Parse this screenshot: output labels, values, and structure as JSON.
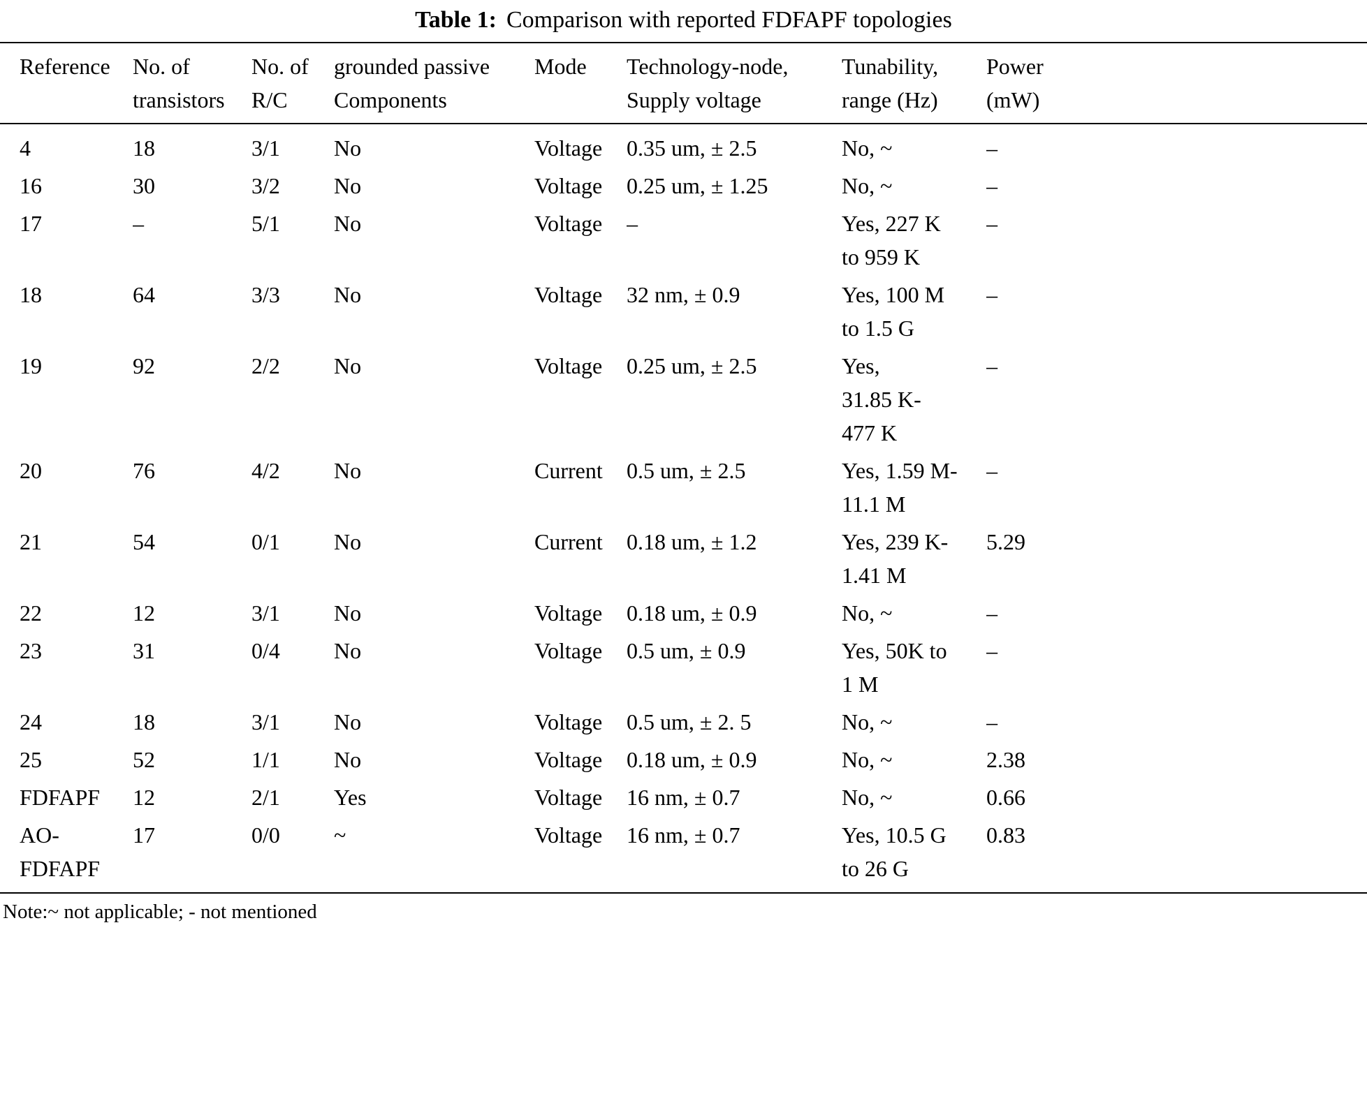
{
  "title": {
    "label": "Table 1:",
    "text": "Comparison with reported FDFAPF topologies"
  },
  "table": {
    "columns": [
      "Reference",
      "No. of\ntransistors",
      "No. of\nR/C",
      "grounded passive\nComponents",
      "Mode",
      "Technology-node,\nSupply voltage",
      "Tunability,\nrange (Hz)",
      "Power\n(mW)"
    ],
    "rows": [
      [
        "4",
        "18",
        "3/1",
        "No",
        "Voltage",
        "0.35 um, ± 2.5",
        "No, ~",
        "–"
      ],
      [
        "16",
        "30",
        "3/2",
        "No",
        "Voltage",
        "0.25 um, ± 1.25",
        "No, ~",
        "–"
      ],
      [
        "17",
        "–",
        "5/1",
        "No",
        "Voltage",
        "–",
        "Yes, 227 K\nto 959 K",
        "–"
      ],
      [
        "18",
        "64",
        "3/3",
        "No",
        "Voltage",
        "32 nm, ± 0.9",
        "Yes, 100 M\nto 1.5 G",
        "–"
      ],
      [
        "19",
        "92",
        "2/2",
        "No",
        "Voltage",
        "0.25 um, ± 2.5",
        "Yes,\n31.85 K-\n477 K",
        "–"
      ],
      [
        "20",
        "76",
        "4/2",
        "No",
        "Current",
        "0.5 um, ± 2.5",
        "Yes, 1.59 M-\n11.1 M",
        "–"
      ],
      [
        "21",
        "54",
        "0/1",
        "No",
        "Current",
        "0.18 um, ± 1.2",
        "Yes, 239 K-\n1.41 M",
        "5.29"
      ],
      [
        "22",
        "12",
        "3/1",
        "No",
        "Voltage",
        "0.18 um, ± 0.9",
        "No, ~",
        "–"
      ],
      [
        "23",
        "31",
        "0/4",
        "No",
        "Voltage",
        "0.5 um, ± 0.9",
        "Yes, 50K to\n1 M",
        "–"
      ],
      [
        "24",
        "18",
        "3/1",
        "No",
        "Voltage",
        "0.5 um, ± 2. 5",
        "No, ~",
        "–"
      ],
      [
        "25",
        "52",
        "1/1",
        "No",
        "Voltage",
        "0.18 um, ± 0.9",
        "No, ~",
        "2.38"
      ],
      [
        "FDFAPF",
        "12",
        "2/1",
        "Yes",
        "Voltage",
        "16 nm, ± 0.7",
        "No, ~",
        "0.66"
      ],
      [
        "AO-\nFDFAPF",
        "17",
        "0/0",
        "~",
        "Voltage",
        "16 nm, ± 0.7",
        "Yes, 10.5 G\nto 26 G",
        "0.83"
      ]
    ]
  },
  "note": "Note:~ not applicable; - not mentioned"
}
